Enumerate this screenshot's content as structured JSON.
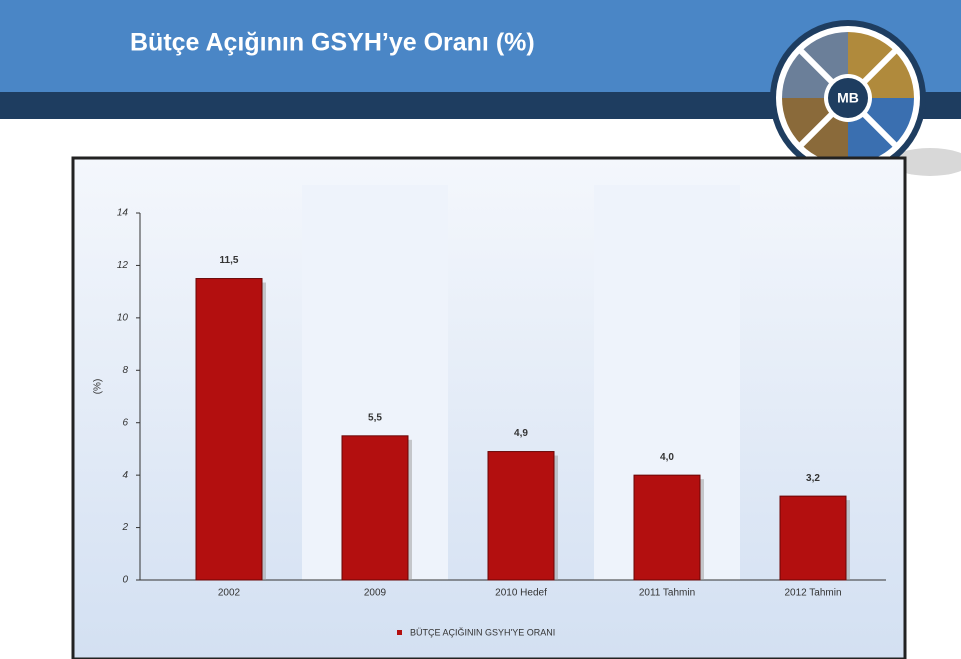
{
  "title": "Bütçe Açığının GSYH’ye Oranı (%)",
  "logo": "MB",
  "chart_data": {
    "type": "bar",
    "categories": [
      "2002",
      "2009",
      "2010 Hedef",
      "2011 Tahmin",
      "2012 Tahmin"
    ],
    "series": [
      {
        "name": "BÜTÇE AÇIĞININ GSYH'YE ORANI",
        "color": "#b30f0f",
        "values": [
          11.5,
          5.5,
          4.9,
          4.0,
          3.2
        ],
        "value_labels": [
          "11,5",
          "5,5",
          "4,9",
          "4,0",
          "3,2"
        ]
      }
    ],
    "y_label": "(%)",
    "ylim": [
      0,
      14
    ],
    "yticks": [
      0,
      2,
      4,
      6,
      8,
      10,
      12,
      14
    ],
    "legend": "bottom"
  }
}
